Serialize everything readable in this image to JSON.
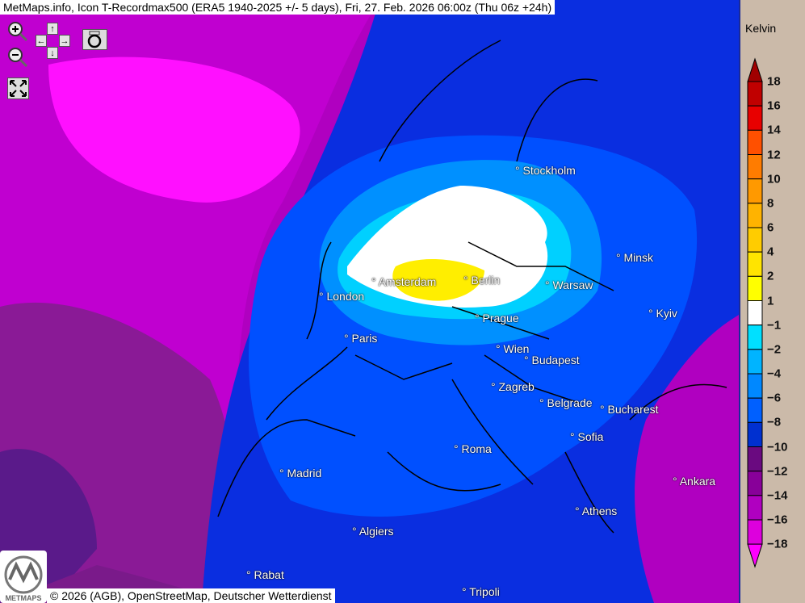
{
  "title": "MetMaps.info, Icon T-Recordmax500 (ERA5 1940-2025 +/- 5 days), Fri, 27. Feb. 2026 06:00z (Thu 06z +24h)",
  "controls": {
    "zoom_in": "zoom-in-icon",
    "zoom_out": "zoom-out-icon",
    "pan_up": "↑",
    "pan_down": "↓",
    "pan_left": "←",
    "pan_right": "→",
    "screenshot": "camera-icon",
    "fullscreen": "fullscreen-icon"
  },
  "cities": [
    {
      "name": "Stockholm"
    },
    {
      "name": "Minsk"
    },
    {
      "name": "Amsterdam"
    },
    {
      "name": "Berlin"
    },
    {
      "name": "Warsaw"
    },
    {
      "name": "London"
    },
    {
      "name": "Kyiv"
    },
    {
      "name": "Prague"
    },
    {
      "name": "Paris"
    },
    {
      "name": "Wien"
    },
    {
      "name": "Budapest"
    },
    {
      "name": "Zagreb"
    },
    {
      "name": "Belgrade"
    },
    {
      "name": "Bucharest"
    },
    {
      "name": "Sofia"
    },
    {
      "name": "Roma"
    },
    {
      "name": "Madrid"
    },
    {
      "name": "Ankara"
    },
    {
      "name": "Athens"
    },
    {
      "name": "Algiers"
    },
    {
      "name": "Rabat"
    },
    {
      "name": "Tripoli"
    }
  ],
  "footer": "© 2026 (AGB), OpenStreetMap, Deutscher Wetterdienst",
  "logo_text": "METMAPS",
  "legend": {
    "unit": "Kelvin",
    "labels": [
      "18",
      "16",
      "14",
      "12",
      "10",
      "8",
      "6",
      "4",
      "2",
      "1",
      "−1",
      "−2",
      "−4",
      "−6",
      "−8",
      "−10",
      "−12",
      "−14",
      "−16",
      "−18"
    ],
    "top_color": "#a00000",
    "colors": [
      "#c00000",
      "#e80000",
      "#ff5000",
      "#ff7c00",
      "#ff9900",
      "#ffb300",
      "#ffcc00",
      "#ffe400",
      "#ffff00",
      "#ffffff",
      "#00e0ff",
      "#00b4ff",
      "#0088ff",
      "#0060ff",
      "#0030d0",
      "#6a0a80",
      "#880099",
      "#b000c0",
      "#dd00dd"
    ],
    "bottom_color": "#ff00ff"
  }
}
